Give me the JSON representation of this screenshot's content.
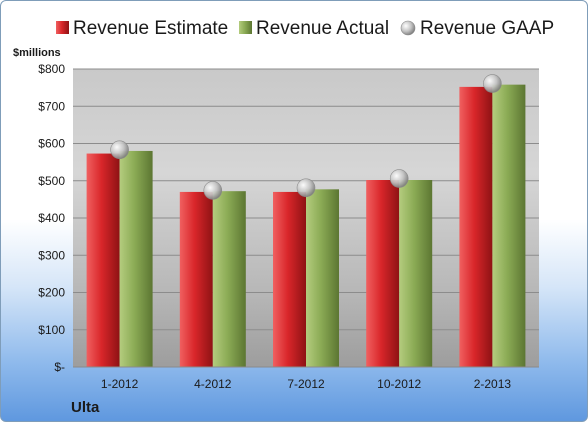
{
  "company": "Ulta",
  "chart_data": {
    "type": "bar",
    "unit_label": "$millions",
    "categories": [
      "1-2012",
      "4-2012",
      "7-2012",
      "10-2012",
      "2-2013"
    ],
    "series": [
      {
        "name": "Revenue Estimate",
        "values": [
          573,
          470,
          470,
          502,
          752
        ],
        "color": "#d9262a"
      },
      {
        "name": "Revenue Actual",
        "values": [
          580,
          472,
          477,
          502,
          758
        ],
        "color": "#8bab55"
      },
      {
        "name": "Revenue GAAP",
        "values": [
          583,
          474,
          481,
          506,
          761
        ],
        "color": "#b8b8b8",
        "marker": "sphere"
      }
    ],
    "ylim": [
      0,
      800
    ],
    "yticks": [
      0,
      100,
      200,
      300,
      400,
      500,
      600,
      700,
      800
    ],
    "ytick_labels": [
      "$-",
      "$100",
      "$200",
      "$300",
      "$400",
      "$500",
      "$600",
      "$700",
      "$800"
    ],
    "grid": true,
    "legend_position": "top"
  }
}
